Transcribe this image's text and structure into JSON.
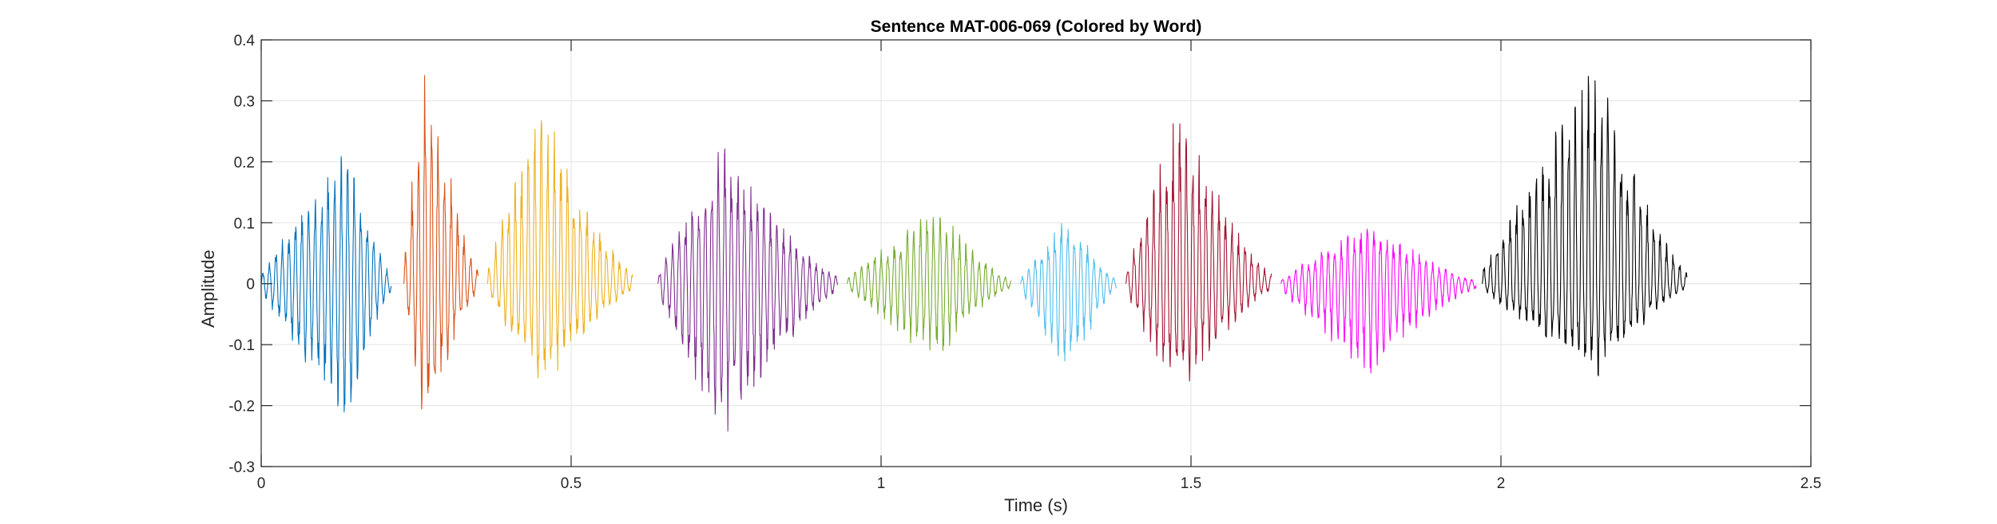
{
  "chart_data": {
    "type": "line",
    "title": "Sentence MAT-006-069 (Colored by Word)",
    "xlabel": "Time (s)",
    "ylabel": "Amplitude",
    "xlim": [
      0,
      2.5
    ],
    "ylim": [
      -0.3,
      0.4
    ],
    "xticks": [
      0,
      0.5,
      1,
      1.5,
      2,
      2.5
    ],
    "xtick_labels": [
      "0",
      "0.5",
      "1",
      "1.5",
      "2",
      "2.5"
    ],
    "yticks": [
      -0.3,
      -0.2,
      -0.1,
      0,
      0.1,
      0.2,
      0.3,
      0.4
    ],
    "ytick_labels": [
      "-0.3",
      "-0.2",
      "-0.1",
      "0",
      "0.1",
      "0.2",
      "0.3",
      "0.4"
    ],
    "grid": true,
    "series": [
      {
        "color": "#0072BD",
        "t_start": 0.0,
        "t_end": 0.21,
        "peak_time": 0.14,
        "max": 0.23,
        "min": -0.23
      },
      {
        "color": "#D95319",
        "t_start": 0.23,
        "t_end": 0.35,
        "peak_time": 0.265,
        "max": 0.385,
        "min": -0.25
      },
      {
        "color": "#EDB120",
        "t_start": 0.365,
        "t_end": 0.6,
        "peak_time": 0.455,
        "max": 0.31,
        "min": -0.185
      },
      {
        "color": "#7E2F8E",
        "t_start": 0.64,
        "t_end": 0.93,
        "peak_time": 0.745,
        "max": 0.235,
        "min": -0.265
      },
      {
        "color": "#77AC30",
        "t_start": 0.945,
        "t_end": 1.21,
        "peak_time": 1.09,
        "max": 0.13,
        "min": -0.13
      },
      {
        "color": "#4DBEEE",
        "t_start": 1.225,
        "t_end": 1.38,
        "peak_time": 1.3,
        "max": 0.12,
        "min": -0.165
      },
      {
        "color": "#A2142F",
        "t_start": 1.395,
        "t_end": 1.63,
        "peak_time": 1.48,
        "max": 0.29,
        "min": -0.19
      },
      {
        "color": "#FF00FF",
        "t_start": 1.645,
        "t_end": 1.96,
        "peak_time": 1.79,
        "max": 0.105,
        "min": -0.155
      },
      {
        "color": "#000000",
        "t_start": 1.97,
        "t_end": 2.3,
        "peak_time": 2.155,
        "max": 0.375,
        "min": -0.16
      }
    ]
  }
}
